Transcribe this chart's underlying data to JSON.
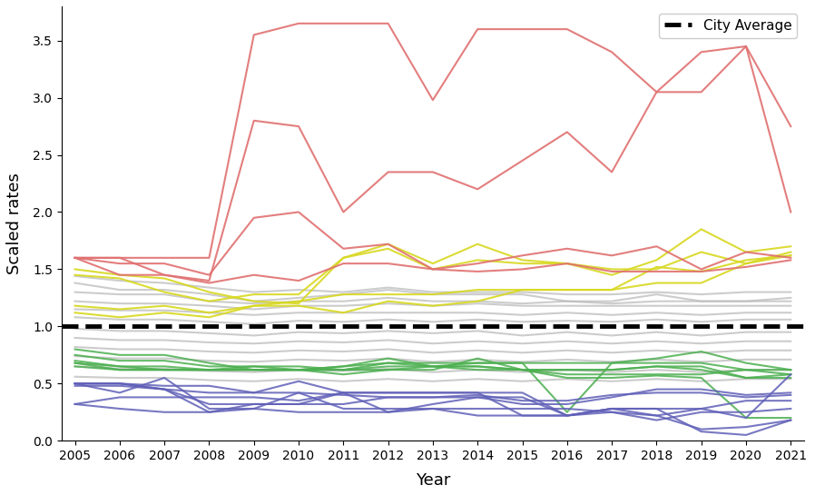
{
  "years": [
    2005,
    2006,
    2007,
    2008,
    2009,
    2010,
    2011,
    2012,
    2013,
    2014,
    2015,
    2016,
    2017,
    2018,
    2019,
    2020,
    2021
  ],
  "city_average": 1.0,
  "xlabel": "Year",
  "ylabel": "Scaled rates",
  "ylim": [
    0.0,
    3.8
  ],
  "yticks": [
    0.0,
    0.5,
    1.0,
    1.5,
    2.0,
    2.5,
    3.0,
    3.5
  ],
  "background_color": "#ffffff",
  "red_lines": [
    [
      1.6,
      1.6,
      1.6,
      1.6,
      3.55,
      3.65,
      3.65,
      3.65,
      2.98,
      3.6,
      3.6,
      3.6,
      3.4,
      3.05,
      3.05,
      3.45,
      2.75
    ],
    [
      1.6,
      1.6,
      1.45,
      1.4,
      2.8,
      2.75,
      2.0,
      2.35,
      2.35,
      2.2,
      2.45,
      2.7,
      2.35,
      3.05,
      3.4,
      3.45,
      2.0
    ],
    [
      1.6,
      1.55,
      1.55,
      1.45,
      1.95,
      2.0,
      1.68,
      1.72,
      1.5,
      1.55,
      1.62,
      1.68,
      1.62,
      1.7,
      1.5,
      1.65,
      1.6
    ],
    [
      1.6,
      1.45,
      1.45,
      1.38,
      1.45,
      1.4,
      1.55,
      1.55,
      1.5,
      1.48,
      1.5,
      1.55,
      1.48,
      1.48,
      1.48,
      1.52,
      1.58
    ]
  ],
  "yellow_lines": [
    [
      1.5,
      1.45,
      1.42,
      1.3,
      1.22,
      1.2,
      1.6,
      1.72,
      1.55,
      1.72,
      1.58,
      1.55,
      1.45,
      1.58,
      1.85,
      1.65,
      1.7
    ],
    [
      1.45,
      1.42,
      1.3,
      1.22,
      1.28,
      1.28,
      1.6,
      1.68,
      1.5,
      1.58,
      1.55,
      1.55,
      1.5,
      1.5,
      1.65,
      1.55,
      1.62
    ],
    [
      1.18,
      1.15,
      1.18,
      1.12,
      1.18,
      1.22,
      1.28,
      1.28,
      1.28,
      1.32,
      1.32,
      1.32,
      1.32,
      1.38,
      1.38,
      1.55,
      1.65
    ],
    [
      1.12,
      1.08,
      1.12,
      1.08,
      1.18,
      1.18,
      1.12,
      1.22,
      1.18,
      1.22,
      1.32,
      1.32,
      1.32,
      1.52,
      1.48,
      1.58,
      1.62
    ]
  ],
  "green_lines": [
    [
      0.8,
      0.75,
      0.75,
      0.68,
      0.62,
      0.62,
      0.62,
      0.65,
      0.65,
      0.62,
      0.62,
      0.62,
      0.62,
      0.65,
      0.65,
      0.55,
      0.58
    ],
    [
      0.75,
      0.7,
      0.7,
      0.65,
      0.65,
      0.62,
      0.65,
      0.72,
      0.65,
      0.65,
      0.62,
      0.62,
      0.62,
      0.65,
      0.62,
      0.55,
      0.55
    ],
    [
      0.7,
      0.65,
      0.65,
      0.62,
      0.65,
      0.65,
      0.62,
      0.62,
      0.65,
      0.65,
      0.62,
      0.55,
      0.55,
      0.57,
      0.55,
      0.2,
      0.2
    ],
    [
      0.65,
      0.62,
      0.62,
      0.62,
      0.62,
      0.62,
      0.65,
      0.68,
      0.65,
      0.68,
      0.68,
      0.25,
      0.68,
      0.72,
      0.78,
      0.68,
      0.62
    ],
    [
      0.68,
      0.62,
      0.62,
      0.62,
      0.62,
      0.62,
      0.58,
      0.62,
      0.62,
      0.72,
      0.62,
      0.58,
      0.58,
      0.58,
      0.58,
      0.62,
      0.58
    ],
    [
      0.68,
      0.65,
      0.62,
      0.62,
      0.62,
      0.62,
      0.62,
      0.68,
      0.68,
      0.68,
      0.68,
      0.68,
      0.68,
      0.68,
      0.68,
      0.62,
      0.62
    ]
  ],
  "blue_lines": [
    [
      0.5,
      0.42,
      0.55,
      0.28,
      0.28,
      0.42,
      0.28,
      0.28,
      0.28,
      0.28,
      0.28,
      0.28,
      0.25,
      0.22,
      0.1,
      0.12,
      0.18
    ],
    [
      0.5,
      0.5,
      0.45,
      0.25,
      0.32,
      0.32,
      0.42,
      0.42,
      0.42,
      0.42,
      0.22,
      0.22,
      0.28,
      0.28,
      0.28,
      0.35,
      0.35
    ],
    [
      0.48,
      0.48,
      0.45,
      0.42,
      0.42,
      0.42,
      0.4,
      0.38,
      0.38,
      0.4,
      0.35,
      0.35,
      0.4,
      0.42,
      0.42,
      0.38,
      0.4
    ],
    [
      0.32,
      0.38,
      0.38,
      0.38,
      0.38,
      0.35,
      0.42,
      0.42,
      0.42,
      0.42,
      0.42,
      0.22,
      0.28,
      0.28,
      0.08,
      0.05,
      0.18
    ],
    [
      0.5,
      0.5,
      0.48,
      0.48,
      0.42,
      0.52,
      0.42,
      0.25,
      0.32,
      0.38,
      0.32,
      0.32,
      0.38,
      0.45,
      0.45,
      0.4,
      0.42
    ],
    [
      0.5,
      0.5,
      0.45,
      0.32,
      0.32,
      0.32,
      0.32,
      0.38,
      0.38,
      0.38,
      0.38,
      0.22,
      0.28,
      0.22,
      0.28,
      0.2,
      0.58
    ],
    [
      0.32,
      0.28,
      0.25,
      0.25,
      0.28,
      0.25,
      0.25,
      0.25,
      0.28,
      0.22,
      0.22,
      0.22,
      0.25,
      0.18,
      0.25,
      0.25,
      0.28
    ]
  ],
  "gray_lines": [
    [
      1.38,
      1.32,
      1.32,
      1.28,
      1.22,
      1.25,
      1.28,
      1.32,
      1.28,
      1.28,
      1.28,
      1.22,
      1.22,
      1.28,
      1.22,
      1.22,
      1.25
    ],
    [
      1.3,
      1.28,
      1.28,
      1.22,
      1.2,
      1.22,
      1.22,
      1.25,
      1.22,
      1.22,
      1.2,
      1.22,
      1.2,
      1.22,
      1.22,
      1.22,
      1.22
    ],
    [
      1.22,
      1.2,
      1.2,
      1.18,
      1.15,
      1.18,
      1.18,
      1.2,
      1.18,
      1.2,
      1.18,
      1.18,
      1.18,
      1.18,
      1.18,
      1.18,
      1.18
    ],
    [
      1.15,
      1.14,
      1.14,
      1.12,
      1.1,
      1.12,
      1.12,
      1.12,
      1.12,
      1.12,
      1.1,
      1.12,
      1.1,
      1.12,
      1.1,
      1.12,
      1.12
    ],
    [
      1.08,
      1.06,
      1.06,
      1.04,
      1.02,
      1.05,
      1.04,
      1.06,
      1.04,
      1.06,
      1.04,
      1.05,
      1.04,
      1.06,
      1.04,
      1.06,
      1.06
    ],
    [
      0.98,
      0.96,
      0.96,
      0.94,
      0.92,
      0.95,
      0.94,
      0.96,
      0.94,
      0.96,
      0.92,
      0.95,
      0.92,
      0.95,
      0.92,
      0.95,
      0.95
    ],
    [
      0.9,
      0.88,
      0.88,
      0.86,
      0.85,
      0.87,
      0.86,
      0.88,
      0.85,
      0.87,
      0.85,
      0.87,
      0.85,
      0.87,
      0.85,
      0.87,
      0.87
    ],
    [
      0.82,
      0.8,
      0.8,
      0.78,
      0.77,
      0.79,
      0.78,
      0.8,
      0.77,
      0.79,
      0.77,
      0.79,
      0.77,
      0.79,
      0.77,
      0.79,
      0.79
    ],
    [
      0.74,
      0.72,
      0.72,
      0.7,
      0.69,
      0.71,
      0.7,
      0.72,
      0.69,
      0.71,
      0.69,
      0.71,
      0.69,
      0.71,
      0.69,
      0.71,
      0.71
    ],
    [
      0.65,
      0.63,
      0.63,
      0.61,
      0.6,
      0.62,
      0.61,
      0.63,
      0.6,
      0.62,
      0.6,
      0.62,
      0.6,
      0.62,
      0.6,
      0.62,
      0.62
    ],
    [
      1.44,
      1.4,
      1.38,
      1.34,
      1.3,
      1.32,
      1.3,
      1.34,
      1.3,
      1.3,
      1.3,
      1.28,
      1.28,
      1.3,
      1.28,
      1.3,
      1.3
    ],
    [
      0.56,
      0.55,
      0.55,
      0.53,
      0.52,
      0.54,
      0.52,
      0.54,
      0.52,
      0.54,
      0.52,
      0.54,
      0.52,
      0.54,
      0.52,
      0.54,
      0.54
    ]
  ],
  "red_color": "#E07070",
  "yellow_color": "#D8D820",
  "green_color": "#4CAF50",
  "blue_color": "#6060B8",
  "gray_color": "#BBBBBB",
  "city_avg_color": "#000000",
  "line_width": 1.5,
  "city_avg_lw": 3.5,
  "legend_fontsize": 11
}
